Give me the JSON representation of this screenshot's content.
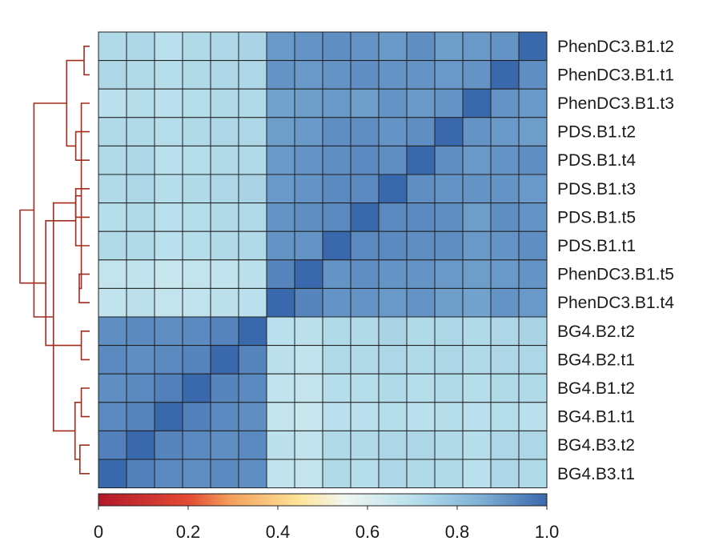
{
  "chart_data": {
    "type": "heatmap",
    "title": "",
    "xlabel": "",
    "ylabel": "",
    "row_labels": [
      "PhenDC3.B1.t2",
      "PhenDC3.B1.t1",
      "PhenDC3.B1.t3",
      "PDS.B1.t2",
      "PDS.B1.t4",
      "PDS.B1.t3",
      "PDS.B1.t5",
      "PDS.B1.t1",
      "PhenDC3.B1.t5",
      "PhenDC3.B1.t4",
      "BG4.B2.t2",
      "BG4.B2.t1",
      "BG4.B1.t2",
      "BG4.B1.t1",
      "BG4.B3.t2",
      "BG4.B3.t1"
    ],
    "column_labels": [],
    "values": [
      [
        0.72,
        0.73,
        0.7,
        0.72,
        0.73,
        0.74,
        0.9,
        0.91,
        0.92,
        0.91,
        0.9,
        0.92,
        0.89,
        0.9,
        0.91,
        1.0
      ],
      [
        0.73,
        0.72,
        0.71,
        0.72,
        0.73,
        0.73,
        0.91,
        0.9,
        0.91,
        0.92,
        0.91,
        0.91,
        0.9,
        0.91,
        1.0,
        0.92
      ],
      [
        0.7,
        0.71,
        0.7,
        0.71,
        0.72,
        0.72,
        0.88,
        0.89,
        0.9,
        0.89,
        0.91,
        0.9,
        0.91,
        1.0,
        0.91,
        0.9
      ],
      [
        0.72,
        0.72,
        0.71,
        0.72,
        0.73,
        0.73,
        0.89,
        0.9,
        0.92,
        0.92,
        0.91,
        0.92,
        1.0,
        0.91,
        0.9,
        0.89
      ],
      [
        0.72,
        0.73,
        0.7,
        0.71,
        0.72,
        0.72,
        0.9,
        0.91,
        0.92,
        0.93,
        0.92,
        1.0,
        0.92,
        0.9,
        0.91,
        0.92
      ],
      [
        0.72,
        0.73,
        0.71,
        0.72,
        0.73,
        0.74,
        0.9,
        0.91,
        0.93,
        0.93,
        1.0,
        0.92,
        0.91,
        0.91,
        0.91,
        0.9
      ],
      [
        0.71,
        0.72,
        0.7,
        0.71,
        0.72,
        0.72,
        0.91,
        0.92,
        0.93,
        1.0,
        0.93,
        0.93,
        0.92,
        0.89,
        0.92,
        0.91
      ],
      [
        0.72,
        0.72,
        0.7,
        0.71,
        0.72,
        0.72,
        0.91,
        0.91,
        1.0,
        0.93,
        0.93,
        0.92,
        0.92,
        0.9,
        0.91,
        0.92
      ],
      [
        0.67,
        0.68,
        0.66,
        0.67,
        0.68,
        0.69,
        0.94,
        1.0,
        0.91,
        0.92,
        0.91,
        0.91,
        0.9,
        0.89,
        0.9,
        0.91
      ],
      [
        0.68,
        0.69,
        0.67,
        0.68,
        0.69,
        0.7,
        1.0,
        0.94,
        0.91,
        0.91,
        0.9,
        0.91,
        0.89,
        0.88,
        0.91,
        0.9
      ],
      [
        0.92,
        0.93,
        0.92,
        0.93,
        0.94,
        1.0,
        0.7,
        0.69,
        0.72,
        0.72,
        0.74,
        0.72,
        0.73,
        0.72,
        0.73,
        0.74
      ],
      [
        0.93,
        0.92,
        0.93,
        0.94,
        1.0,
        0.94,
        0.69,
        0.68,
        0.72,
        0.72,
        0.73,
        0.72,
        0.73,
        0.72,
        0.73,
        0.73
      ],
      [
        0.92,
        0.93,
        0.95,
        1.0,
        0.94,
        0.93,
        0.68,
        0.67,
        0.71,
        0.71,
        0.72,
        0.71,
        0.72,
        0.71,
        0.72,
        0.72
      ],
      [
        0.93,
        0.94,
        1.0,
        0.95,
        0.93,
        0.92,
        0.67,
        0.66,
        0.7,
        0.7,
        0.71,
        0.7,
        0.71,
        0.7,
        0.71,
        0.7
      ],
      [
        0.95,
        1.0,
        0.94,
        0.93,
        0.92,
        0.93,
        0.69,
        0.68,
        0.72,
        0.72,
        0.73,
        0.73,
        0.72,
        0.71,
        0.73,
        0.73
      ],
      [
        1.0,
        0.95,
        0.93,
        0.92,
        0.93,
        0.92,
        0.68,
        0.67,
        0.72,
        0.71,
        0.73,
        0.72,
        0.72,
        0.7,
        0.73,
        0.72
      ]
    ],
    "color_scale": {
      "min": 0,
      "max": 1.0,
      "ticks": [
        "0",
        "0.2",
        "0.4",
        "0.6",
        "0.8",
        "1.0"
      ],
      "tick_values": [
        0,
        0.2,
        0.4,
        0.6,
        0.8,
        1.0
      ],
      "stops": [
        {
          "v": 0.0,
          "color": "#b2182b"
        },
        {
          "v": 0.2,
          "color": "#e34a33"
        },
        {
          "v": 0.3,
          "color": "#f4a35e"
        },
        {
          "v": 0.45,
          "color": "#fee599"
        },
        {
          "v": 0.55,
          "color": "#f0f6f2"
        },
        {
          "v": 0.7,
          "color": "#b9e0ec"
        },
        {
          "v": 0.85,
          "color": "#7fb1d5"
        },
        {
          "v": 1.0,
          "color": "#3a68ad"
        }
      ]
    },
    "dendrogram": {
      "linkage": [
        [
          8,
          9,
          0.15
        ],
        [
          10,
          11,
          0.12
        ],
        [
          12,
          13,
          0.12
        ],
        [
          14,
          15,
          0.14
        ],
        [
          0,
          1,
          0.08
        ],
        [
          16,
          2,
          0.12
        ],
        [
          3,
          4,
          0.2
        ],
        [
          18,
          19,
          0.21
        ],
        [
          5,
          6,
          0.2
        ],
        [
          21,
          7,
          0.2
        ],
        [
          20,
          22,
          0.33
        ],
        [
          23,
          24,
          0.52
        ],
        [
          25,
          17,
          0.63
        ],
        [
          26,
          27,
          0.8
        ],
        [
          29,
          28,
          1.0
        ]
      ],
      "line_color": "#a12c1e"
    },
    "grid": false,
    "legend": "colorbar-bottom"
  }
}
